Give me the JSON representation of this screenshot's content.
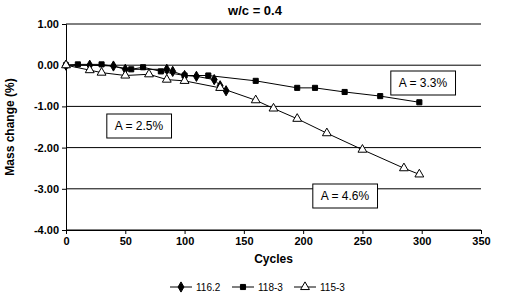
{
  "chart_data": {
    "type": "line",
    "title": "w/c = 0.4",
    "x_label": "Cycles",
    "y_label": "Mass change (%)",
    "xlim": [
      0,
      350
    ],
    "xticks": [
      0,
      50,
      100,
      150,
      200,
      250,
      300,
      350
    ],
    "ylim": [
      -4,
      1
    ],
    "yticks": [
      {
        "value": -4,
        "label": "-4.00"
      },
      {
        "value": -3,
        "label": "-3.00"
      },
      {
        "value": -2,
        "label": "-2.00"
      },
      {
        "value": -1,
        "label": "-1.00"
      },
      {
        "value": 0,
        "label": "0.00"
      },
      {
        "value": 1,
        "label": "1.00"
      }
    ],
    "grid": true,
    "legend": "bottom",
    "annotations": [
      "A = 3.3%",
      "A = 2.5%",
      "A = 4.6%"
    ],
    "series": [
      {
        "name": "116.2",
        "color": "#000000",
        "marker": "diamond",
        "line_style": "solid",
        "x": [
          0,
          20,
          40,
          50,
          85,
          90,
          100,
          110,
          125,
          130,
          135
        ],
        "values": [
          0.0,
          0.0,
          -0.02,
          -0.1,
          -0.1,
          -0.15,
          -0.25,
          -0.27,
          -0.35,
          -0.5,
          -0.62
        ]
      },
      {
        "name": "118-3",
        "color": "#000000",
        "marker": "square",
        "line_style": "solid",
        "x": [
          0,
          10,
          30,
          55,
          65,
          80,
          100,
          120,
          160,
          195,
          210,
          235,
          265,
          298
        ],
        "values": [
          0.0,
          0.02,
          0.02,
          -0.1,
          -0.05,
          -0.15,
          -0.25,
          -0.25,
          -0.38,
          -0.55,
          -0.55,
          -0.65,
          -0.75,
          -0.9
        ]
      },
      {
        "name": "115-3",
        "color": "#000000",
        "marker": "triangle-open",
        "line_style": "solid",
        "x": [
          0,
          20,
          30,
          50,
          70,
          85,
          100,
          130,
          160,
          175,
          195,
          220,
          250,
          285,
          298
        ],
        "values": [
          0.0,
          -0.12,
          -0.18,
          -0.25,
          -0.22,
          -0.35,
          -0.38,
          -0.55,
          -0.85,
          -1.05,
          -1.3,
          -1.65,
          -2.05,
          -2.5,
          -2.65
        ]
      }
    ]
  }
}
